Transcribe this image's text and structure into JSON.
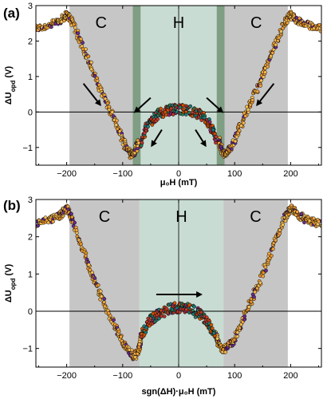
{
  "chart_data": [
    {
      "type": "scatter",
      "panel_label": "(a)",
      "xlabel": "μ₀H (mT)",
      "ylabel": "ΔU_opd (V)",
      "xlim": [
        -255,
        255
      ],
      "ylim": [
        -1.5,
        3.0
      ],
      "xticks": [
        -200,
        -100,
        0,
        100,
        200
      ],
      "yticks": [
        -1,
        0,
        1,
        2,
        3
      ],
      "grid": false,
      "regions": [
        {
          "label": "C",
          "from": -195,
          "to": -82,
          "color": "#c6c6c6"
        },
        {
          "label": "H",
          "from": -82,
          "to": 82,
          "color": "#c9dcd3"
        },
        {
          "label": "C",
          "from": 82,
          "to": 195,
          "color": "#c6c6c6"
        }
      ],
      "transition_bands": [
        {
          "from": -82,
          "to": -68,
          "color": "#7f9e84"
        },
        {
          "from": 68,
          "to": 82,
          "color": "#7f9e84"
        }
      ],
      "series": [
        {
          "kind": "outer-curve",
          "color": "#f2a33a",
          "x": [
            -255,
            -230,
            -210,
            -200,
            -190,
            -170,
            -150,
            -130,
            -110,
            -95,
            -85,
            -78,
            -72
          ],
          "y": [
            2.35,
            2.45,
            2.6,
            2.75,
            2.55,
            1.8,
            1.0,
            0.3,
            -0.4,
            -0.95,
            -1.2,
            -1.15,
            -0.8
          ]
        },
        {
          "kind": "outer-curve",
          "color": "#f2a33a",
          "x": [
            72,
            78,
            85,
            95,
            110,
            130,
            150,
            170,
            190,
            200,
            210,
            230,
            255
          ],
          "y": [
            -0.8,
            -1.15,
            -1.2,
            -0.95,
            -0.4,
            0.3,
            1.0,
            1.8,
            2.55,
            2.75,
            2.6,
            2.45,
            2.35
          ]
        },
        {
          "kind": "inner-dome",
          "color": "#c0392b",
          "x": [
            -68,
            -55,
            -40,
            -20,
            0,
            20,
            40,
            55,
            68
          ],
          "y": [
            -0.85,
            -0.35,
            -0.1,
            0.05,
            0.08,
            0.05,
            -0.1,
            -0.35,
            -0.85
          ]
        }
      ],
      "arrows": [
        {
          "from": [
            -170,
            0.8
          ],
          "to": [
            -140,
            0.2
          ]
        },
        {
          "from": [
            -50,
            0.4
          ],
          "to": [
            -78,
            0.0
          ]
        },
        {
          "from": [
            -30,
            -0.5
          ],
          "to": [
            -48,
            -0.95
          ]
        },
        {
          "from": [
            30,
            -0.5
          ],
          "to": [
            48,
            -0.95
          ]
        },
        {
          "from": [
            50,
            0.4
          ],
          "to": [
            78,
            0.0
          ]
        },
        {
          "from": [
            170,
            0.8
          ],
          "to": [
            140,
            0.2
          ]
        }
      ]
    },
    {
      "type": "scatter",
      "panel_label": "(b)",
      "xlabel": "sgn(ΔH)·μ₀H (mT)",
      "ylabel": "ΔU_opd (V)",
      "xlim": [
        -255,
        255
      ],
      "ylim": [
        -1.5,
        3.0
      ],
      "xticks": [
        -200,
        -100,
        0,
        100,
        200
      ],
      "yticks": [
        -1,
        0,
        1,
        2,
        3
      ],
      "grid": false,
      "regions": [
        {
          "label": "C",
          "from": -195,
          "to": -70,
          "color": "#c6c6c6"
        },
        {
          "label": "H",
          "from": -70,
          "to": 80,
          "color": "#c9dcd3"
        },
        {
          "label": "C",
          "from": 80,
          "to": 195,
          "color": "#c6c6c6"
        }
      ],
      "transition_bands": [],
      "series": [
        {
          "kind": "outer-curve",
          "color": "#f2a33a",
          "x": [
            -255,
            -230,
            -210,
            -200,
            -190,
            -170,
            -150,
            -130,
            -110,
            -95,
            -80,
            -72,
            -65
          ],
          "y": [
            2.35,
            2.45,
            2.6,
            2.75,
            2.45,
            1.6,
            0.8,
            0.1,
            -0.5,
            -0.95,
            -1.25,
            -1.05,
            -0.6
          ]
        },
        {
          "kind": "outer-curve",
          "color": "#f2a33a",
          "x": [
            65,
            72,
            80,
            95,
            110,
            130,
            150,
            170,
            190,
            200,
            210,
            230,
            255
          ],
          "y": [
            -0.6,
            -0.9,
            -1.05,
            -0.85,
            -0.4,
            0.3,
            1.0,
            1.8,
            2.55,
            2.8,
            2.6,
            2.45,
            2.35
          ]
        },
        {
          "kind": "inner-dome",
          "color": "#c0392b",
          "x": [
            -65,
            -50,
            -35,
            -15,
            0,
            15,
            35,
            50,
            65
          ],
          "y": [
            -0.6,
            -0.25,
            -0.05,
            0.08,
            0.1,
            0.08,
            -0.05,
            -0.25,
            -0.6
          ]
        }
      ],
      "arrows": [
        {
          "from": [
            -40,
            0.45
          ],
          "to": [
            40,
            0.45
          ]
        }
      ]
    }
  ]
}
